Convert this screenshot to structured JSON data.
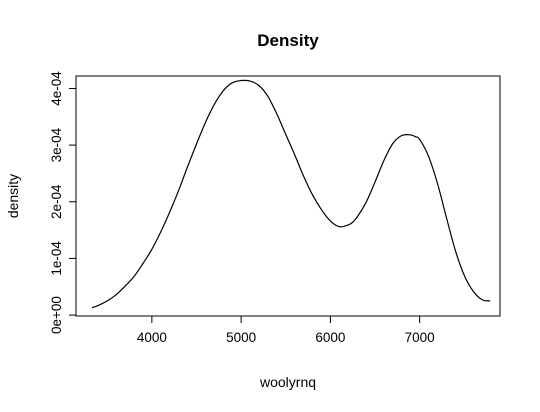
{
  "chart_data": {
    "type": "line",
    "title": "Density",
    "xlabel": "woolyrnq",
    "ylabel": "density",
    "xlim": [
      3150,
      7900
    ],
    "ylim": [
      -1.66e-06,
      0.000422
    ],
    "x_ticks": [
      {
        "value": 4000,
        "label": "4000"
      },
      {
        "value": 5000,
        "label": "5000"
      },
      {
        "value": 6000,
        "label": "6000"
      },
      {
        "value": 7000,
        "label": "7000"
      }
    ],
    "y_ticks": [
      {
        "value": 0,
        "label": "0e+00"
      },
      {
        "value": 0.0001,
        "label": "1e-04"
      },
      {
        "value": 0.0002,
        "label": "2e-04"
      },
      {
        "value": 0.0003,
        "label": "3e-04"
      },
      {
        "value": 0.0004,
        "label": "4e-04"
      }
    ],
    "grid": false,
    "line_color": "#000000",
    "series": [
      {
        "x": [
          3330,
          3400,
          3500,
          3600,
          3700,
          3800,
          3900,
          4000,
          4100,
          4200,
          4300,
          4400,
          4500,
          4600,
          4700,
          4800,
          4900,
          5000,
          5100,
          5200,
          5300,
          5400,
          5500,
          5600,
          5700,
          5800,
          5900,
          6000,
          6100,
          6200,
          6250,
          6300,
          6400,
          6500,
          6600,
          6700,
          6800,
          6900,
          6950,
          7000,
          7100,
          7200,
          7300,
          7400,
          7500,
          7600,
          7700,
          7790
        ],
        "y": [
          1.3e-05,
          1.7e-05,
          2.5e-05,
          3.6e-05,
          5.1e-05,
          6.8e-05,
          9.1e-05,
          0.000116,
          0.000147,
          0.000182,
          0.00022,
          0.000262,
          0.000302,
          0.00034,
          0.000372,
          0.000396,
          0.00041,
          0.000414,
          0.000413,
          0.000405,
          0.000386,
          0.000355,
          0.000319,
          0.000283,
          0.000245,
          0.000212,
          0.000186,
          0.000166,
          0.000156,
          0.000159,
          0.000164,
          0.000173,
          0.000199,
          0.000235,
          0.000273,
          0.000303,
          0.000317,
          0.000318,
          0.000315,
          0.00031,
          0.00028,
          0.000232,
          0.000172,
          0.000114,
          7e-05,
          4.2e-05,
          2.7e-05,
          2.5e-05
        ]
      }
    ]
  }
}
